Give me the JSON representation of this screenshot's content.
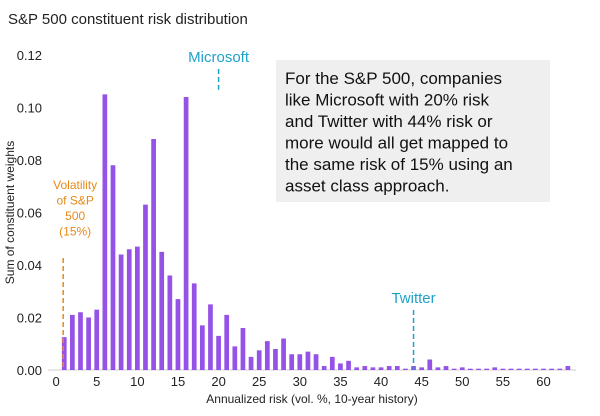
{
  "chart_data": {
    "type": "bar",
    "title": "S&P 500 constituent risk distribution",
    "xlabel": "Annualized risk (vol. %, 10-year history)",
    "ylabel": "Sum of constituent weights",
    "xlim": [
      -1,
      64
    ],
    "ylim": [
      0,
      0.12
    ],
    "x_ticks": [
      "0",
      "5",
      "10",
      "15",
      "20",
      "25",
      "30",
      "35",
      "40",
      "45",
      "50",
      "55",
      "60"
    ],
    "y_ticks": [
      "0.00",
      "0.02",
      "0.04",
      "0.06",
      "0.08",
      "0.10",
      "0.12"
    ],
    "bar_color": "#9452e6",
    "x": [
      1,
      2,
      3,
      4,
      5,
      6,
      7,
      8,
      9,
      10,
      11,
      12,
      13,
      14,
      15,
      16,
      17,
      18,
      19,
      20,
      21,
      22,
      23,
      24,
      25,
      26,
      27,
      28,
      29,
      30,
      31,
      32,
      33,
      34,
      35,
      36,
      37,
      38,
      39,
      40,
      41,
      42,
      43,
      44,
      45,
      46,
      47,
      48,
      49,
      50,
      51,
      52,
      53,
      54,
      55,
      56,
      57,
      58,
      59,
      60,
      61,
      62,
      63
    ],
    "values": [
      0.0125,
      0.021,
      0.022,
      0.02,
      0.023,
      0.105,
      0.078,
      0.044,
      0.046,
      0.047,
      0.063,
      0.088,
      0.045,
      0.036,
      0.027,
      0.104,
      0.033,
      0.017,
      0.025,
      0.013,
      0.021,
      0.009,
      0.016,
      0.005,
      0.0075,
      0.011,
      0.008,
      0.012,
      0.006,
      0.006,
      0.007,
      0.006,
      0.0015,
      0.005,
      0.0025,
      0.0035,
      0.001,
      0.0015,
      0.001,
      0.001,
      0.0015,
      0.0015,
      0.0005,
      0.0015,
      0.001,
      0.004,
      0.001,
      0.0015,
      0.0005,
      0.001,
      0.0005,
      0.0005,
      0.0005,
      0.001,
      0.0005,
      0.0005,
      0.0005,
      0.0005,
      0.0005,
      0.0005,
      0.0005,
      0.0005,
      0.0015
    ],
    "annotations": [
      {
        "label": "Microsoft",
        "x": 20,
        "color": "#1fa2c9"
      },
      {
        "label": "Twitter",
        "x": 44,
        "color": "#1fa2c9"
      },
      {
        "label_lines": [
          "Volatility",
          "of S&P",
          "500",
          "(15%)"
        ],
        "x": 0.5,
        "color": "#e8891a"
      }
    ],
    "callout_lines": [
      "For the S&P 500, companies",
      "like Microsoft with 20% risk",
      "and Twitter with 44% risk or",
      "more would all get mapped to",
      "the same risk of 15% using an",
      "asset class approach."
    ]
  }
}
